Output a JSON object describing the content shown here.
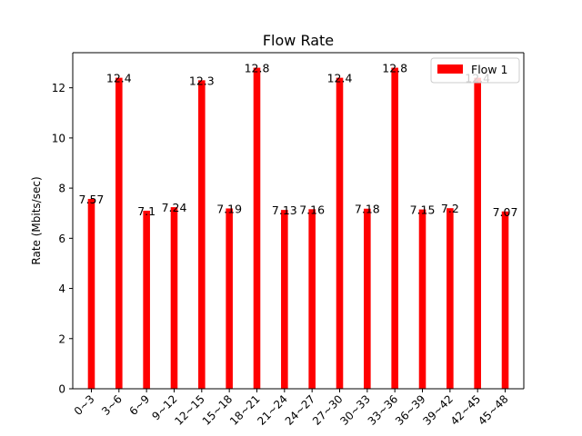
{
  "chart_data": {
    "type": "bar",
    "title": "Flow Rate",
    "xlabel": "",
    "ylabel": "Rate (Mbits/sec)",
    "categories": [
      "0~3",
      "3~6",
      "6~9",
      "9~12",
      "12~15",
      "15~18",
      "18~21",
      "21~24",
      "24~27",
      "27~30",
      "30~33",
      "33~36",
      "36~39",
      "39~42",
      "42~45",
      "45~48"
    ],
    "series": [
      {
        "name": "Flow 1",
        "color": "#ff0000",
        "values": [
          7.57,
          12.4,
          7.1,
          7.24,
          12.3,
          7.19,
          12.8,
          7.13,
          7.16,
          12.4,
          7.18,
          12.8,
          7.15,
          7.2,
          12.4,
          7.07
        ],
        "labels": [
          "7.57",
          "12.4",
          "7.1",
          "7.24",
          "12.3",
          "7.19",
          "12.8",
          "7.13",
          "7.16",
          "12.4",
          "7.18",
          "12.8",
          "7.15",
          "7.2",
          "12.4",
          "7.07"
        ]
      }
    ],
    "ylim": [
      0,
      13.4
    ],
    "yticks": [
      0,
      2,
      4,
      6,
      8,
      10,
      12
    ],
    "grid": false,
    "legend_position": "top-right"
  }
}
